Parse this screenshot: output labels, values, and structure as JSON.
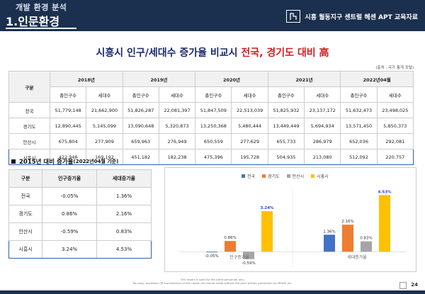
{
  "header": {
    "section": "개발 환경 분석",
    "title": "1.인문환경",
    "org": "시흥 월동지구 센트럴 헤센 APT 교육자료",
    "logo_icon": "building-logo-icon"
  },
  "title": {
    "prefix": "시흥시 인구/세대수 증가율 비교시 ",
    "highlight": "전국, 경기도 대비 高"
  },
  "source": "(출처 : 국가 통계 포털)",
  "pop_table": {
    "label_header": "구분",
    "years": [
      "2018년",
      "2019년",
      "2020년",
      "2021년",
      "2022년04월"
    ],
    "sub_headers": [
      "총인구수",
      "세대수"
    ],
    "rows": [
      {
        "name": "전국",
        "values": [
          "51,779,148",
          "21,662,900",
          "51,826,287",
          "22,081,397",
          "51,847,509",
          "22,513,039",
          "51,825,932",
          "23,137,172",
          "51,632,473",
          "23,498,025"
        ]
      },
      {
        "name": "경기도",
        "values": [
          "12,890,445",
          "5,145,099",
          "13,090,648",
          "5,320,873",
          "13,250,368",
          "5,480,444",
          "13,449,449",
          "5,694,934",
          "13,571,450",
          "5,850,373"
        ]
      },
      {
        "name": "안산시",
        "values": [
          "675,804",
          "277,909",
          "659,963",
          "276,949",
          "650,559",
          "277,629",
          "655,733",
          "286,979",
          "652,036",
          "292,081"
        ]
      },
      {
        "name": "시흥시",
        "values": [
          "422,946",
          "169,192",
          "451,182",
          "182,238",
          "475,396",
          "195,728",
          "504,935",
          "213,080",
          "512,092",
          "220,757"
        ]
      }
    ]
  },
  "growth_section": {
    "title": "2015년 대비 증가율",
    "subtitle": "(2022년04월 기준)"
  },
  "growth_table": {
    "headers": [
      "구분",
      "인구증가율",
      "세대증가율"
    ],
    "rows": [
      {
        "name": "전국",
        "pop": "-0.05%",
        "hh": "1.36%"
      },
      {
        "name": "경기도",
        "pop": "0.86%",
        "hh": "2.16%"
      },
      {
        "name": "안산시",
        "pop": "-0.59%",
        "hh": "0.83%"
      },
      {
        "name": "시흥시",
        "pop": "3.24%",
        "hh": "4.53%"
      }
    ]
  },
  "chart_data": {
    "type": "bar",
    "categories": [
      "인구증가율",
      "세대증가율"
    ],
    "series": [
      {
        "name": "전국",
        "color": "#4472c4",
        "values": [
          -0.05,
          1.36
        ],
        "labels": [
          "-0.05%",
          "1.36%"
        ]
      },
      {
        "name": "경기도",
        "color": "#ed7d31",
        "values": [
          0.86,
          2.16
        ],
        "labels": [
          "0.86%",
          "2.16%"
        ]
      },
      {
        "name": "안산시",
        "color": "#a5a5a5",
        "values": [
          -0.59,
          0.83
        ],
        "labels": [
          "-0.59%",
          "0.83%"
        ]
      },
      {
        "name": "시흥시",
        "color": "#ffc000",
        "values": [
          3.24,
          4.53
        ],
        "labels": [
          "3.24%",
          "4.53%"
        ]
      }
    ],
    "ylim": [
      -1,
      5
    ],
    "legend": "top",
    "grid": false,
    "label_colors": {
      "시흥시": "#2a3fd6",
      "default": "#333333"
    }
  },
  "footer": {
    "line1": "This report is used for the client personnel only.",
    "line2": "No copy, quotation OR transmission of this report can not be made without the prior written permission by MIDAS Inc."
  },
  "page_number": "24"
}
